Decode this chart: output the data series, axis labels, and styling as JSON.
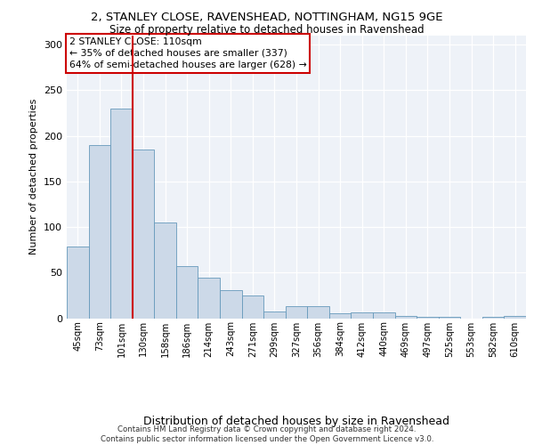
{
  "title_line1": "2, STANLEY CLOSE, RAVENSHEAD, NOTTINGHAM, NG15 9GE",
  "title_line2": "Size of property relative to detached houses in Ravenshead",
  "xlabel": "Distribution of detached houses by size in Ravenshead",
  "ylabel": "Number of detached properties",
  "footer_line1": "Contains HM Land Registry data © Crown copyright and database right 2024.",
  "footer_line2": "Contains public sector information licensed under the Open Government Licence v3.0.",
  "categories": [
    "45sqm",
    "73sqm",
    "101sqm",
    "130sqm",
    "158sqm",
    "186sqm",
    "214sqm",
    "243sqm",
    "271sqm",
    "299sqm",
    "327sqm",
    "356sqm",
    "384sqm",
    "412sqm",
    "440sqm",
    "469sqm",
    "497sqm",
    "525sqm",
    "553sqm",
    "582sqm",
    "610sqm"
  ],
  "values": [
    79,
    190,
    230,
    185,
    105,
    57,
    44,
    31,
    25,
    7,
    13,
    13,
    5,
    6,
    6,
    2,
    1,
    1,
    0,
    1,
    2
  ],
  "bar_color": "#ccd9e8",
  "bar_edge_color": "#6699bb",
  "property_label": "2 STANLEY CLOSE: 110sqm",
  "annotation_line1": "← 35% of detached houses are smaller (337)",
  "annotation_line2": "64% of semi-detached houses are larger (628) →",
  "vline_color": "#cc0000",
  "vline_x_index": 2.5,
  "annotation_box_color": "#cc0000",
  "plot_bg_color": "#eef2f8",
  "ylim": [
    0,
    310
  ],
  "yticks": [
    0,
    50,
    100,
    150,
    200,
    250,
    300
  ]
}
